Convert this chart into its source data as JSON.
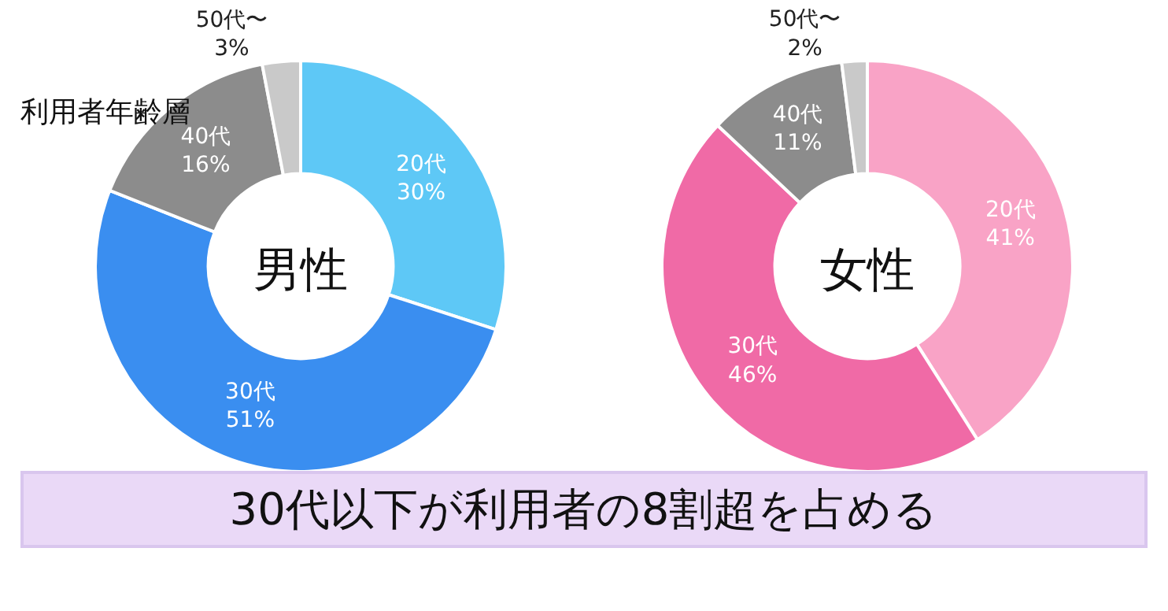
{
  "chart_data": [
    {
      "type": "donut",
      "title": "男性",
      "categories": [
        "20代",
        "30代",
        "40代",
        "50代〜"
      ],
      "values": [
        30,
        51,
        16,
        3
      ],
      "value_labels": [
        "30%",
        "51%",
        "16%",
        "3%"
      ],
      "colors": [
        "#5ec8f6",
        "#3a8ef0",
        "#8c8c8c",
        "#c9c9c9"
      ],
      "annotations": [
        "利用者年齢層"
      ]
    },
    {
      "type": "donut",
      "title": "女性",
      "categories": [
        "20代",
        "30代",
        "40代",
        "50代〜"
      ],
      "values": [
        41,
        46,
        11,
        2
      ],
      "value_labels": [
        "41%",
        "46%",
        "11%",
        "2%"
      ],
      "colors": [
        "#f9a3c6",
        "#f06aa6",
        "#8c8c8c",
        "#c9c9c9"
      ],
      "annotations": [
        "30代以下が利用者の8割超を占める"
      ]
    }
  ]
}
